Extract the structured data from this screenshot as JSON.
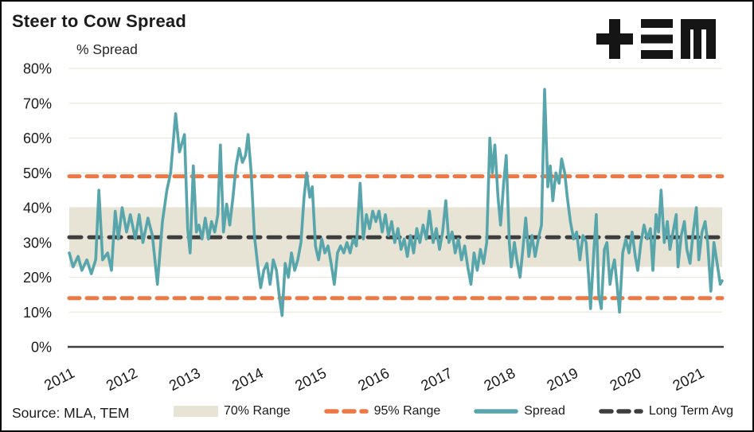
{
  "header": {
    "title": "Steer to Cow Spread",
    "logo": "TEM"
  },
  "footer": {
    "source": "Source: MLA, TEM"
  },
  "colors": {
    "spread_line": "#58A6AC",
    "range95_line": "#EE7844",
    "long_term_avg_line": "#3E3E3E",
    "band_fill": "#E7E4D6",
    "gridline": "#EDEBDF",
    "axis_line": "#3F3F3F",
    "text": "#1b1b1b"
  },
  "chart_data": {
    "type": "line",
    "title": "Steer to Cow Spread",
    "y_axis_title": "% Spread",
    "xlabel": "",
    "ylabel": "% Spread",
    "ylim": [
      0,
      80
    ],
    "xlim": [
      2011,
      2021.37
    ],
    "grid": "horizontal",
    "legend_position": "bottom",
    "y_tick_labels": [
      "0%",
      "10%",
      "20%",
      "30%",
      "40%",
      "50%",
      "60%",
      "70%",
      "80%"
    ],
    "x_tick_labels": [
      "2011",
      "2012",
      "2013",
      "2014",
      "2015",
      "2016",
      "2017",
      "2018",
      "2019",
      "2020",
      "2021"
    ],
    "band_70_range": {
      "low": 23,
      "high": 40
    },
    "range_95": {
      "low": 14,
      "high": 49
    },
    "long_term_avg": 31.5,
    "legend": [
      {
        "label": "70% Range",
        "marker": "band"
      },
      {
        "label": "95% Range",
        "marker": "dashed-orange"
      },
      {
        "label": "Spread",
        "marker": "solid-teal"
      },
      {
        "label": "Long Term Avg",
        "marker": "dashed-dark"
      }
    ],
    "series": [
      {
        "name": "Spread",
        "points": [
          [
            2011.0,
            27
          ],
          [
            2011.06,
            23
          ],
          [
            2011.14,
            26
          ],
          [
            2011.2,
            22
          ],
          [
            2011.28,
            25
          ],
          [
            2011.35,
            21
          ],
          [
            2011.42,
            25
          ],
          [
            2011.47,
            45
          ],
          [
            2011.53,
            25
          ],
          [
            2011.61,
            27
          ],
          [
            2011.67,
            22
          ],
          [
            2011.73,
            39
          ],
          [
            2011.78,
            31
          ],
          [
            2011.84,
            40
          ],
          [
            2011.91,
            33
          ],
          [
            2011.97,
            38
          ],
          [
            2012.05,
            31
          ],
          [
            2012.11,
            38
          ],
          [
            2012.17,
            30
          ],
          [
            2012.25,
            37
          ],
          [
            2012.32,
            32
          ],
          [
            2012.4,
            18
          ],
          [
            2012.48,
            36
          ],
          [
            2012.55,
            45
          ],
          [
            2012.61,
            50
          ],
          [
            2012.69,
            67
          ],
          [
            2012.75,
            56
          ],
          [
            2012.83,
            61
          ],
          [
            2012.88,
            34
          ],
          [
            2012.92,
            27
          ],
          [
            2012.97,
            52
          ],
          [
            2013.02,
            33
          ],
          [
            2013.06,
            35
          ],
          [
            2013.11,
            31
          ],
          [
            2013.16,
            37
          ],
          [
            2013.21,
            31
          ],
          [
            2013.26,
            36
          ],
          [
            2013.31,
            33
          ],
          [
            2013.36,
            38
          ],
          [
            2013.4,
            58
          ],
          [
            2013.45,
            33
          ],
          [
            2013.5,
            41
          ],
          [
            2013.55,
            35
          ],
          [
            2013.6,
            43
          ],
          [
            2013.65,
            52
          ],
          [
            2013.7,
            57
          ],
          [
            2013.75,
            53
          ],
          [
            2013.8,
            55
          ],
          [
            2013.84,
            61
          ],
          [
            2013.89,
            50
          ],
          [
            2013.94,
            32
          ],
          [
            2013.99,
            24
          ],
          [
            2014.04,
            17
          ],
          [
            2014.09,
            22
          ],
          [
            2014.14,
            24
          ],
          [
            2014.19,
            18
          ],
          [
            2014.24,
            25
          ],
          [
            2014.29,
            22
          ],
          [
            2014.34,
            14
          ],
          [
            2014.38,
            9
          ],
          [
            2014.43,
            24
          ],
          [
            2014.48,
            20
          ],
          [
            2014.53,
            27
          ],
          [
            2014.58,
            22
          ],
          [
            2014.63,
            25
          ],
          [
            2014.68,
            30
          ],
          [
            2014.73,
            43
          ],
          [
            2014.77,
            50
          ],
          [
            2014.82,
            43
          ],
          [
            2014.86,
            46
          ],
          [
            2014.91,
            29
          ],
          [
            2014.96,
            25
          ],
          [
            2015.01,
            31
          ],
          [
            2015.06,
            27
          ],
          [
            2015.11,
            29
          ],
          [
            2015.16,
            24
          ],
          [
            2015.21,
            18
          ],
          [
            2015.26,
            27
          ],
          [
            2015.31,
            29
          ],
          [
            2015.36,
            27
          ],
          [
            2015.41,
            30
          ],
          [
            2015.46,
            27
          ],
          [
            2015.51,
            31
          ],
          [
            2015.56,
            29
          ],
          [
            2015.62,
            47
          ],
          [
            2015.67,
            31
          ],
          [
            2015.72,
            38
          ],
          [
            2015.77,
            34
          ],
          [
            2015.82,
            39
          ],
          [
            2015.87,
            36
          ],
          [
            2015.92,
            39
          ],
          [
            2015.97,
            33
          ],
          [
            2016.02,
            38
          ],
          [
            2016.07,
            32
          ],
          [
            2016.12,
            36
          ],
          [
            2016.17,
            30
          ],
          [
            2016.22,
            34
          ],
          [
            2016.27,
            28
          ],
          [
            2016.32,
            31
          ],
          [
            2016.37,
            26
          ],
          [
            2016.42,
            32
          ],
          [
            2016.47,
            27
          ],
          [
            2016.52,
            34
          ],
          [
            2016.57,
            30
          ],
          [
            2016.62,
            35
          ],
          [
            2016.67,
            31
          ],
          [
            2016.72,
            39
          ],
          [
            2016.78,
            30
          ],
          [
            2016.83,
            34
          ],
          [
            2016.88,
            28
          ],
          [
            2016.93,
            33
          ],
          [
            2016.98,
            42
          ],
          [
            2017.03,
            30
          ],
          [
            2017.08,
            33
          ],
          [
            2017.13,
            27
          ],
          [
            2017.18,
            31
          ],
          [
            2017.23,
            25
          ],
          [
            2017.28,
            29
          ],
          [
            2017.33,
            23
          ],
          [
            2017.38,
            18
          ],
          [
            2017.43,
            27
          ],
          [
            2017.48,
            22
          ],
          [
            2017.53,
            28
          ],
          [
            2017.58,
            24
          ],
          [
            2017.63,
            30
          ],
          [
            2017.68,
            60
          ],
          [
            2017.72,
            50
          ],
          [
            2017.76,
            58
          ],
          [
            2017.81,
            43
          ],
          [
            2017.85,
            35
          ],
          [
            2017.9,
            47
          ],
          [
            2017.94,
            55
          ],
          [
            2017.99,
            30
          ],
          [
            2018.02,
            23
          ],
          [
            2018.07,
            30
          ],
          [
            2018.11,
            25
          ],
          [
            2018.16,
            20
          ],
          [
            2018.21,
            29
          ],
          [
            2018.25,
            37
          ],
          [
            2018.3,
            26
          ],
          [
            2018.35,
            32
          ],
          [
            2018.4,
            26
          ],
          [
            2018.45,
            31
          ],
          [
            2018.5,
            35
          ],
          [
            2018.55,
            74
          ],
          [
            2018.6,
            46
          ],
          [
            2018.64,
            52
          ],
          [
            2018.68,
            42
          ],
          [
            2018.73,
            50
          ],
          [
            2018.78,
            47
          ],
          [
            2018.82,
            54
          ],
          [
            2018.87,
            50
          ],
          [
            2018.91,
            43
          ],
          [
            2018.96,
            36
          ],
          [
            2019.01,
            31
          ],
          [
            2019.06,
            33
          ],
          [
            2019.11,
            25
          ],
          [
            2019.16,
            32
          ],
          [
            2019.21,
            30
          ],
          [
            2019.25,
            20
          ],
          [
            2019.28,
            11
          ],
          [
            2019.33,
            27
          ],
          [
            2019.37,
            38
          ],
          [
            2019.41,
            15
          ],
          [
            2019.45,
            11
          ],
          [
            2019.5,
            28
          ],
          [
            2019.54,
            30
          ],
          [
            2019.59,
            18
          ],
          [
            2019.62,
            22
          ],
          [
            2019.66,
            25
          ],
          [
            2019.7,
            18
          ],
          [
            2019.74,
            10
          ],
          [
            2019.79,
            27
          ],
          [
            2019.84,
            31
          ],
          [
            2019.89,
            27
          ],
          [
            2019.94,
            33
          ],
          [
            2019.99,
            26
          ],
          [
            2020.03,
            22
          ],
          [
            2020.08,
            30
          ],
          [
            2020.13,
            35
          ],
          [
            2020.18,
            31
          ],
          [
            2020.23,
            34
          ],
          [
            2020.27,
            22
          ],
          [
            2020.32,
            38
          ],
          [
            2020.36,
            33
          ],
          [
            2020.4,
            45
          ],
          [
            2020.45,
            30
          ],
          [
            2020.5,
            36
          ],
          [
            2020.54,
            28
          ],
          [
            2020.59,
            33
          ],
          [
            2020.64,
            38
          ],
          [
            2020.67,
            23
          ],
          [
            2020.72,
            32
          ],
          [
            2020.77,
            36
          ],
          [
            2020.81,
            28
          ],
          [
            2020.86,
            24
          ],
          [
            2020.91,
            33
          ],
          [
            2020.96,
            40
          ],
          [
            2021.0,
            25
          ],
          [
            2021.05,
            33
          ],
          [
            2021.1,
            36
          ],
          [
            2021.14,
            30
          ],
          [
            2021.19,
            16
          ],
          [
            2021.24,
            30
          ],
          [
            2021.29,
            24
          ],
          [
            2021.34,
            18
          ],
          [
            2021.37,
            19
          ]
        ]
      }
    ]
  }
}
